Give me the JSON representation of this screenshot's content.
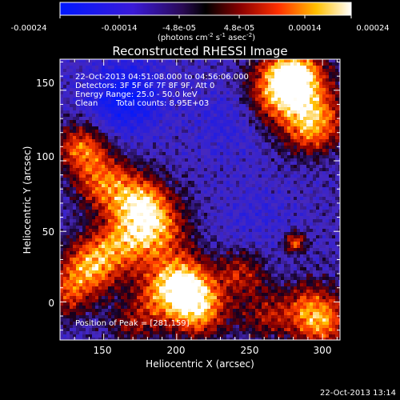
{
  "colorbar": {
    "ticks": [
      "-0.00024",
      "-0.00014",
      "-4.8e-05",
      "4.8e-05",
      "0.00014",
      "0.00024"
    ],
    "unit_main": "(photons cm",
    "unit_exp1": "-2",
    "unit_mid": " s",
    "unit_exp2": "-1",
    "unit_end": " asec",
    "unit_exp3": "-2",
    "unit_close": ")"
  },
  "chart_data": {
    "type": "heatmap",
    "title": "Reconstructed RHESSI Image",
    "xlabel": "Heliocentric X (arcsec)",
    "ylabel": "Heliocentric Y (arcsec)",
    "xlim": [
      120,
      312
    ],
    "ylim": [
      -27,
      172
    ],
    "x_ticks": [
      150,
      200,
      250,
      300
    ],
    "y_ticks": [
      0,
      50,
      100,
      150
    ],
    "clim": [
      -0.00024,
      0.00024
    ],
    "colormap": "blue-black-red-yellow-white",
    "annotations": [
      "22-Oct-2013 04:51:08.000 to 04:56:06.000",
      "Detectors: 3F 5F 6F 7F 8F 9F, Att 0",
      "Energy Range: 25.0 - 50.0 keV",
      "Clean",
      "Total counts: 8.95E+03"
    ],
    "peak_label": "Position of Peak = [281,159]",
    "peak": [
      281,
      159
    ]
  },
  "footer": {
    "timestamp": "22-Oct-2013 13:14"
  }
}
